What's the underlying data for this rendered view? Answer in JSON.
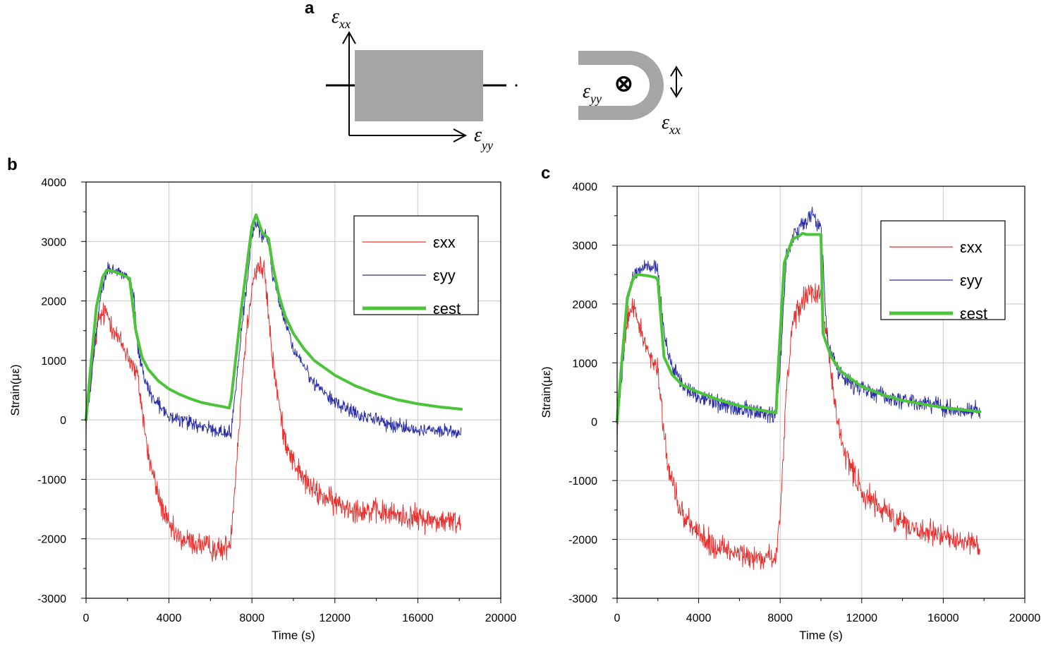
{
  "panels": {
    "a": "a",
    "b": "b",
    "c": "c"
  },
  "diagram": {
    "eps_symbol": "ε",
    "xx_sub": "xx",
    "yy_sub": "yy",
    "out_of_plane_symbol": "⊗",
    "colors": {
      "fill": "#a6a6a6",
      "line": "#000000"
    }
  },
  "colors": {
    "exx": "#e8302f",
    "eyy": "#2b2fa5",
    "eest": "#4cc43a",
    "grid": "#c8c8c8"
  },
  "chart_data": [
    {
      "panel": "b",
      "type": "line",
      "xlabel": "Time (s)",
      "ylabel": "Strain(με)",
      "xlim": [
        0,
        20000
      ],
      "ylim": [
        -3000,
        4000
      ],
      "xticks": [
        0,
        4000,
        8000,
        12000,
        16000,
        20000
      ],
      "yticks": [
        -3000,
        -2000,
        -1000,
        0,
        1000,
        2000,
        3000,
        4000
      ],
      "grid": true,
      "legend_position": "top-right",
      "series": [
        {
          "name": "εxx",
          "key": "exx",
          "noise": 160,
          "x": [
            0,
            200,
            600,
            1000,
            1500,
            2000,
            2500,
            3000,
            3500,
            4000,
            4500,
            5000,
            5500,
            6000,
            6500,
            6900,
            7000,
            7300,
            7600,
            8000,
            8300,
            8600,
            9000,
            9500,
            10000,
            10500,
            11000,
            12000,
            13000,
            14000,
            15000,
            16000,
            17000,
            18100
          ],
          "y": [
            -50,
            600,
            1700,
            1800,
            1400,
            1100,
            700,
            -600,
            -1300,
            -1800,
            -2000,
            -2050,
            -2100,
            -2150,
            -2200,
            -2100,
            -1900,
            -500,
            1000,
            2300,
            2600,
            2500,
            1000,
            -200,
            -700,
            -1000,
            -1200,
            -1400,
            -1500,
            -1550,
            -1600,
            -1650,
            -1700,
            -1720
          ]
        },
        {
          "name": "εyy",
          "key": "eyy",
          "noise": 90,
          "x": [
            0,
            200,
            500,
            800,
            1100,
            1500,
            2000,
            2300,
            2500,
            2800,
            3200,
            3600,
            4000,
            4500,
            5000,
            5500,
            6000,
            6500,
            6800,
            7000,
            7500,
            8000,
            8200,
            8500,
            8800,
            9000,
            9500,
            10000,
            11000,
            12000,
            13000,
            14000,
            15000,
            16000,
            17000,
            18100
          ],
          "y": [
            0,
            500,
            1500,
            2300,
            2550,
            2500,
            2400,
            2100,
            1200,
            700,
            400,
            200,
            100,
            0,
            -50,
            -100,
            -150,
            -200,
            -220,
            -200,
            1500,
            3100,
            3300,
            3100,
            3000,
            2400,
            1800,
            1200,
            600,
            300,
            100,
            0,
            -100,
            -150,
            -200,
            -220
          ]
        },
        {
          "name": "εest",
          "key": "eest",
          "noise": 0,
          "x": [
            0,
            200,
            500,
            800,
            1000,
            1300,
            1700,
            2100,
            2400,
            2700,
            3000,
            3500,
            4000,
            4500,
            5000,
            5500,
            6000,
            6500,
            6900,
            7000,
            7500,
            8000,
            8200,
            8500,
            8800,
            9000,
            9300,
            9600,
            10000,
            10500,
            11000,
            12000,
            13000,
            14000,
            15000,
            16000,
            17000,
            18100
          ],
          "y": [
            0,
            800,
            1900,
            2400,
            2520,
            2500,
            2450,
            2380,
            1500,
            1050,
            850,
            650,
            520,
            430,
            360,
            300,
            260,
            230,
            200,
            350,
            1900,
            3250,
            3450,
            3150,
            3050,
            2600,
            2100,
            1750,
            1450,
            1200,
            1000,
            750,
            570,
            440,
            340,
            270,
            220,
            180
          ]
        }
      ]
    },
    {
      "panel": "c",
      "type": "line",
      "xlabel": "Time (s)",
      "ylabel": "Strain(με)",
      "xlim": [
        0,
        20000
      ],
      "ylim": [
        -3000,
        4000
      ],
      "xticks": [
        0,
        4000,
        8000,
        12000,
        16000,
        20000
      ],
      "yticks": [
        -3000,
        -2000,
        -1000,
        0,
        1000,
        2000,
        3000,
        4000
      ],
      "grid": true,
      "legend_position": "top-right",
      "series": [
        {
          "name": "εxx",
          "key": "exx",
          "noise": 160,
          "x": [
            0,
            200,
            500,
            800,
            1200,
            1600,
            2000,
            2200,
            2500,
            3000,
            3500,
            4000,
            4500,
            5000,
            5500,
            6000,
            6500,
            7000,
            7500,
            7800,
            8000,
            8300,
            8600,
            9000,
            9500,
            10000,
            10300,
            10600,
            11000,
            11500,
            12000,
            13000,
            14000,
            15000,
            16000,
            17000,
            17800
          ],
          "y": [
            -200,
            800,
            1800,
            2000,
            1500,
            1100,
            900,
            200,
            -800,
            -1400,
            -1700,
            -1900,
            -2050,
            -2150,
            -2200,
            -2250,
            -2250,
            -2300,
            -2300,
            -2350,
            -1500,
            500,
            1700,
            2000,
            2200,
            2100,
            1500,
            500,
            -400,
            -800,
            -1200,
            -1500,
            -1700,
            -1850,
            -1950,
            -2050,
            -2100
          ]
        },
        {
          "name": "εyy",
          "key": "eyy",
          "noise": 110,
          "x": [
            0,
            200,
            500,
            800,
            1200,
            1600,
            2000,
            2200,
            2500,
            3000,
            3500,
            4000,
            5000,
            6000,
            7000,
            7800,
            8000,
            8300,
            8700,
            9200,
            9600,
            10000,
            10300,
            10800,
            11500,
            12500,
            13500,
            14500,
            15500,
            16500,
            17800
          ],
          "y": [
            0,
            600,
            2000,
            2500,
            2600,
            2650,
            2600,
            1800,
            1100,
            750,
            550,
            450,
            320,
            220,
            160,
            120,
            900,
            2800,
            3200,
            3350,
            3500,
            3300,
            1400,
            900,
            650,
            500,
            400,
            350,
            280,
            220,
            180
          ]
        },
        {
          "name": "εest",
          "key": "eest",
          "noise": 0,
          "x": [
            0,
            200,
            500,
            800,
            1000,
            1500,
            1900,
            2000,
            2300,
            2700,
            3200,
            4000,
            5000,
            6000,
            7000,
            7800,
            7900,
            8200,
            8600,
            8900,
            9100,
            9300,
            9700,
            10000,
            10100,
            10500,
            11000,
            12000,
            13000,
            14000,
            15000,
            16000,
            17000,
            17800
          ],
          "y": [
            0,
            900,
            2100,
            2450,
            2500,
            2480,
            2450,
            2400,
            1100,
            800,
            620,
            500,
            370,
            270,
            200,
            150,
            900,
            2700,
            3100,
            3150,
            3200,
            3180,
            3180,
            3180,
            1500,
            1100,
            850,
            600,
            460,
            360,
            300,
            240,
            200,
            170
          ]
        }
      ]
    }
  ]
}
